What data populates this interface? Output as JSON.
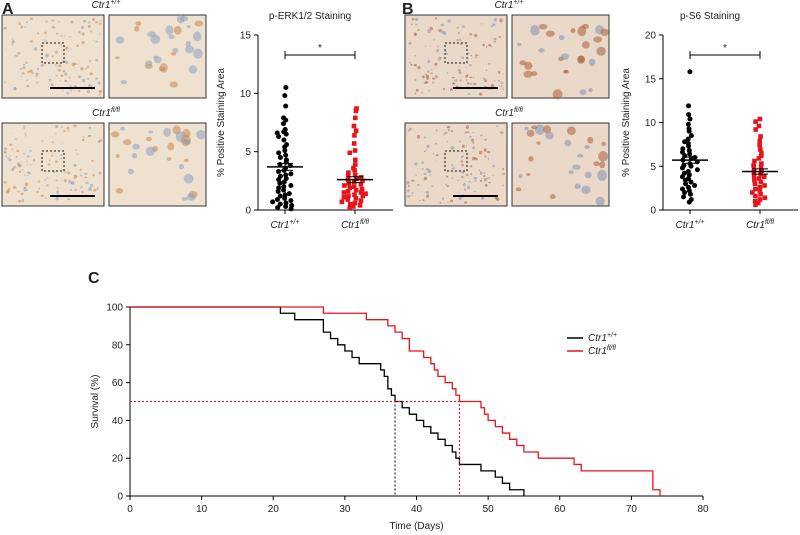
{
  "panels": [
    {
      "letter": "A",
      "images": [
        {
          "genotype": "Ctr1",
          "sup": "+/+"
        },
        {
          "genotype": "Ctr1",
          "sup": "fl/fl"
        }
      ]
    },
    {
      "letter": "B",
      "images": [
        {
          "genotype": "Ctr1",
          "sup": "+/+"
        },
        {
          "genotype": "Ctr1",
          "sup": "fl/fl"
        }
      ]
    },
    {
      "letter": "C"
    }
  ],
  "chart_data": [
    {
      "type": "dotplot",
      "title": "p-ERK1/2 Staining",
      "ylabel": "% Positive Staining Area",
      "ylim": [
        0,
        15
      ],
      "yticks": [
        0,
        5,
        10,
        15
      ],
      "significance": "*",
      "groups": [
        {
          "label": "Ctr1",
          "label_sup": "+/+",
          "color": "#000000",
          "marker": "circle",
          "mean": 3.7,
          "sem": 0.3,
          "values": [
            10.5,
            9.8,
            8.9,
            7.9,
            7.7,
            7.4,
            6.9,
            6.7,
            6.6,
            6.5,
            6.3,
            6.0,
            5.6,
            5.4,
            5.1,
            4.9,
            4.7,
            4.5,
            4.3,
            4.1,
            3.9,
            3.8,
            3.6,
            3.4,
            3.3,
            3.1,
            3.0,
            2.9,
            2.7,
            2.6,
            2.4,
            2.3,
            2.1,
            2.0,
            1.9,
            1.7,
            1.6,
            1.4,
            1.3,
            1.2,
            1.0,
            0.9,
            0.8,
            0.7,
            0.6,
            0.5,
            0.4,
            0.3,
            0.2,
            0.1
          ]
        },
        {
          "label": "Ctr1",
          "label_sup": "fl/fl",
          "color": "#e8141c",
          "marker": "square",
          "mean": 2.6,
          "sem": 0.25,
          "values": [
            8.7,
            8.5,
            7.9,
            7.2,
            6.8,
            6.4,
            5.7,
            5.1,
            4.9,
            4.3,
            3.9,
            3.6,
            3.4,
            3.2,
            3.0,
            2.9,
            2.8,
            2.7,
            2.6,
            2.5,
            2.4,
            2.3,
            2.2,
            2.1,
            2.0,
            1.9,
            1.8,
            1.7,
            1.6,
            1.5,
            1.5,
            1.4,
            1.3,
            1.2,
            1.2,
            1.1,
            1.0,
            0.9,
            0.8,
            0.7,
            0.6,
            0.5,
            0.4,
            0.3,
            0.2
          ]
        }
      ]
    },
    {
      "type": "dotplot",
      "title": "p-S6 Staining",
      "ylabel": "% Positive Staining Area",
      "ylim": [
        0,
        20
      ],
      "yticks": [
        0,
        5,
        10,
        15,
        20
      ],
      "significance": "*",
      "groups": [
        {
          "label": "Ctr1",
          "label_sup": "+/+",
          "color": "#000000",
          "marker": "circle",
          "mean": 5.7,
          "sem": 0.35,
          "values": [
            15.8,
            11.9,
            10.9,
            10.4,
            9.8,
            9.3,
            9.0,
            8.5,
            8.1,
            7.8,
            7.6,
            7.3,
            7.0,
            6.8,
            6.6,
            6.4,
            6.2,
            6.0,
            5.9,
            5.7,
            5.5,
            5.3,
            5.1,
            5.0,
            4.8,
            4.6,
            4.4,
            4.2,
            4.0,
            3.8,
            3.6,
            3.4,
            3.2,
            3.0,
            2.8,
            2.6,
            2.4,
            2.2,
            2.0,
            1.8,
            1.5,
            1.2,
            0.9
          ]
        },
        {
          "label": "Ctr1",
          "label_sup": "fl/fl",
          "color": "#e8141c",
          "marker": "square",
          "mean": 4.4,
          "sem": 0.3,
          "values": [
            10.4,
            10.1,
            9.6,
            9.2,
            8.4,
            7.9,
            7.4,
            6.9,
            6.5,
            6.2,
            5.9,
            5.6,
            5.3,
            5.1,
            4.9,
            4.7,
            4.5,
            4.3,
            4.1,
            3.9,
            3.8,
            3.6,
            3.4,
            3.2,
            3.0,
            2.8,
            2.6,
            2.4,
            2.2,
            2.0,
            1.8,
            1.6,
            1.4,
            1.2,
            1.0,
            0.8,
            0.6
          ]
        }
      ]
    },
    {
      "type": "survival",
      "xlabel": "Time (Days)",
      "ylabel": "Survival (%)",
      "xlim": [
        0,
        80
      ],
      "xticks": [
        0,
        10,
        20,
        30,
        40,
        50,
        60,
        70,
        80
      ],
      "ylim": [
        0,
        100
      ],
      "yticks": [
        0,
        20,
        40,
        60,
        80,
        100
      ],
      "median_survival": 50,
      "series": [
        {
          "name": "Ctr1",
          "name_sup": "+/+",
          "color": "#000000",
          "median": 37,
          "x": [
            0,
            21,
            23,
            27,
            28,
            29,
            30,
            31,
            32,
            35,
            35.5,
            36,
            36.5,
            37,
            38,
            39,
            40,
            41,
            42,
            43,
            44,
            45,
            45.5,
            46,
            49,
            51,
            52,
            53,
            55
          ],
          "values": [
            100,
            96.7,
            93.3,
            86.7,
            83.3,
            80,
            76.7,
            73.3,
            70,
            66.7,
            63.3,
            56.7,
            53.3,
            50,
            46.7,
            43.3,
            40,
            36.7,
            33.3,
            30,
            26.7,
            23.3,
            20,
            16.7,
            13.3,
            10,
            6.7,
            3.3,
            0
          ]
        },
        {
          "name": "Ctr1",
          "name_sup": "fl/fl",
          "color": "#e8141c",
          "median": 46,
          "x": [
            0,
            27,
            33,
            36,
            37,
            38,
            39,
            41,
            42,
            42.5,
            43,
            44,
            45,
            45.5,
            46,
            49,
            49.5,
            50,
            51,
            52,
            53,
            54,
            55,
            57,
            62,
            63,
            73,
            74
          ],
          "values": [
            100,
            96.7,
            93.3,
            90,
            86.7,
            83.3,
            76.7,
            73.3,
            70,
            66.7,
            63.3,
            60,
            56.7,
            53.3,
            50,
            46.7,
            43.3,
            40,
            36.7,
            33.3,
            30,
            26.7,
            23.3,
            20,
            16.7,
            13.3,
            3.3,
            0
          ]
        }
      ]
    }
  ]
}
